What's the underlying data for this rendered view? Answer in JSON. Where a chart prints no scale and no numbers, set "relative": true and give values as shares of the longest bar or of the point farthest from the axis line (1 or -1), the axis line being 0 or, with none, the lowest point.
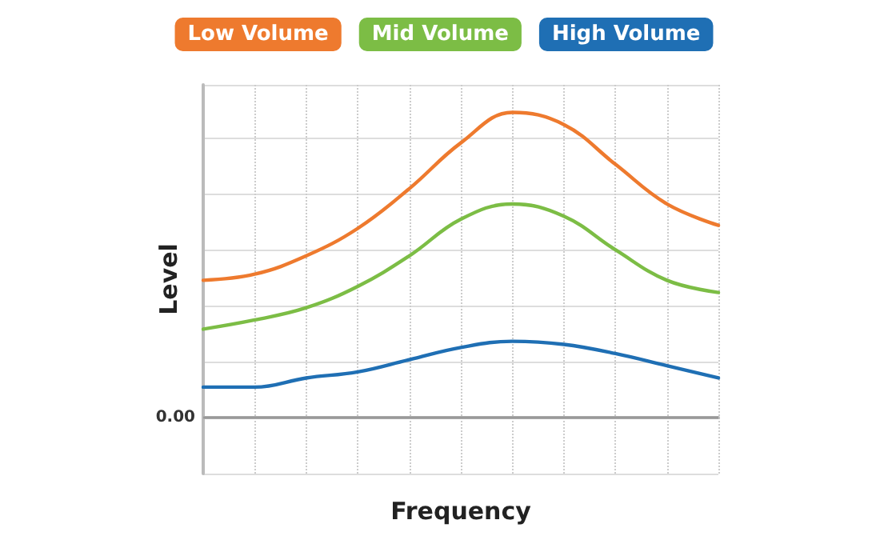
{
  "chart_data": {
    "type": "line",
    "relative": true,
    "xlabel": "Frequency",
    "ylabel": "Level",
    "categories": [
      null,
      null,
      null,
      null,
      null,
      null,
      null,
      null,
      null,
      null,
      null
    ],
    "series": [
      {
        "name": "Low Volume",
        "color": "#ee7a2e",
        "values": [
          0.45,
          0.47,
          0.53,
          0.62,
          0.75,
          0.9,
          1.0,
          0.96,
          0.83,
          0.7,
          0.63
        ]
      },
      {
        "name": "Mid Volume",
        "color": "#7cbd45",
        "values": [
          0.29,
          0.32,
          0.36,
          0.43,
          0.53,
          0.65,
          0.7,
          0.66,
          0.55,
          0.45,
          0.41
        ]
      },
      {
        "name": "High Volume",
        "color": "#1f6fb4",
        "values": [
          0.1,
          0.1,
          0.13,
          0.15,
          0.19,
          0.23,
          0.25,
          0.24,
          0.21,
          0.17,
          0.13
        ]
      }
    ],
    "ref_lines": [
      {
        "axis": "y",
        "value": 0,
        "label": "0.00",
        "color": "#999999"
      }
    ],
    "grid": true,
    "legend": "top",
    "marker": "none",
    "line_style": "solid"
  }
}
